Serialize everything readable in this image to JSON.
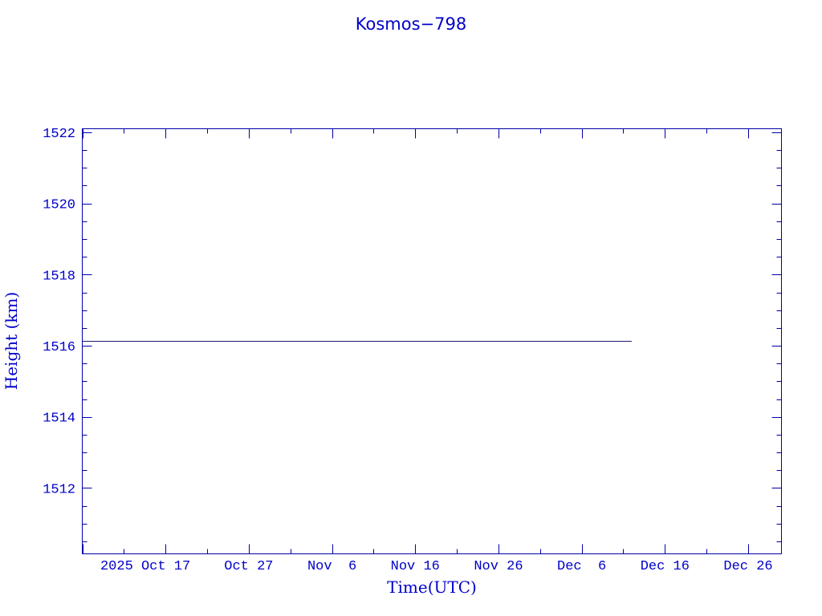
{
  "chart_data": {
    "type": "line",
    "title": "Kosmos−798",
    "xlabel": "Time(UTC)",
    "ylabel": "Height (km)",
    "xlim": [
      "2025-10-07",
      "2025-12-30"
    ],
    "ylim": [
      1510.15,
      1522.1
    ],
    "x_ticks": [
      {
        "date": "2025-10-17",
        "label": "2025 Oct 17"
      },
      {
        "date": "2025-10-27",
        "label": "Oct 27"
      },
      {
        "date": "2025-11-06",
        "label": "Nov  6"
      },
      {
        "date": "2025-11-16",
        "label": "Nov 16"
      },
      {
        "date": "2025-11-26",
        "label": "Nov 26"
      },
      {
        "date": "2025-12-06",
        "label": "Dec  6"
      },
      {
        "date": "2025-12-16",
        "label": "Dec 16"
      },
      {
        "date": "2025-12-26",
        "label": "Dec 26"
      }
    ],
    "y_ticks": [
      "1512",
      "1514",
      "1516",
      "1518",
      "1520",
      "1522"
    ],
    "grid": false,
    "series": [
      {
        "points": [
          {
            "x": "2025-10-07",
            "y": 1516.14
          },
          {
            "x": "2025-12-12",
            "y": 1516.14
          }
        ]
      }
    ],
    "colors": {
      "axis": "#0000a8",
      "text": "#0000c8",
      "line": "#1a1a70"
    }
  }
}
